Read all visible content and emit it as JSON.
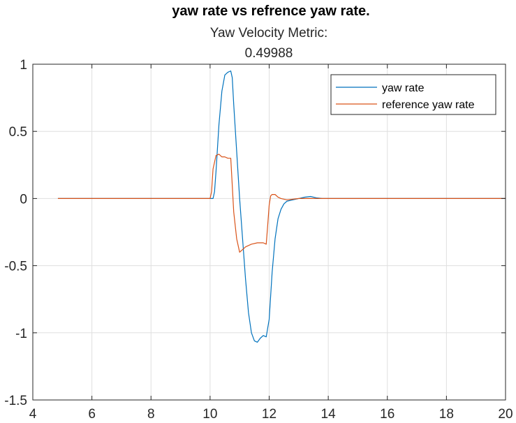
{
  "chart_data": {
    "type": "line",
    "title": "yaw rate vs refrence yaw rate.",
    "subtitle_lines": [
      "Yaw Velocity Metric:",
      "0.49988"
    ],
    "xlabel": "",
    "ylabel": "",
    "xlim": [
      4,
      20
    ],
    "ylim": [
      -1.5,
      1
    ],
    "x_ticks": [
      4,
      6,
      8,
      10,
      12,
      14,
      16,
      18,
      20
    ],
    "x_tick_labels": [
      "4",
      "6",
      "8",
      "10",
      "12",
      "14",
      "16",
      "18",
      "20"
    ],
    "y_ticks": [
      -1.5,
      -1,
      -0.5,
      0,
      0.5,
      1
    ],
    "y_tick_labels": [
      "-1.5",
      "-1",
      "-0.5",
      "0",
      "0.5",
      "1"
    ],
    "grid": true,
    "legend_position": "top-right",
    "series": [
      {
        "name": "yaw rate",
        "color": "#0072BD",
        "x": [
          4.85,
          10.0,
          10.1,
          10.15,
          10.2,
          10.3,
          10.4,
          10.5,
          10.6,
          10.7,
          10.75,
          10.8,
          10.9,
          11.0,
          11.1,
          11.2,
          11.3,
          11.4,
          11.5,
          11.6,
          11.7,
          11.8,
          11.9,
          12.0,
          12.1,
          12.2,
          12.3,
          12.4,
          12.5,
          12.6,
          12.8,
          13.0,
          13.2,
          13.4,
          13.6,
          13.8,
          14.0,
          20.0
        ],
        "y": [
          0,
          0,
          0.0,
          0.05,
          0.2,
          0.55,
          0.8,
          0.92,
          0.94,
          0.95,
          0.9,
          0.7,
          0.35,
          0.0,
          -0.3,
          -0.6,
          -0.85,
          -1.0,
          -1.06,
          -1.07,
          -1.04,
          -1.02,
          -1.03,
          -0.9,
          -0.55,
          -0.3,
          -0.15,
          -0.08,
          -0.04,
          -0.02,
          -0.01,
          0.0,
          0.01,
          0.015,
          0.005,
          0.0,
          0.0,
          0.0
        ]
      },
      {
        "name": "reference yaw rate",
        "color": "#D95319",
        "x": [
          4.85,
          10.0,
          10.05,
          10.1,
          10.2,
          10.3,
          10.4,
          10.5,
          10.6,
          10.7,
          10.75,
          10.8,
          10.9,
          11.0,
          11.1,
          11.2,
          11.4,
          11.6,
          11.8,
          11.9,
          11.95,
          12.0,
          12.05,
          12.1,
          12.2,
          12.3,
          12.4,
          12.6,
          12.8,
          13.0,
          20.0
        ],
        "y": [
          0,
          0,
          0.05,
          0.22,
          0.32,
          0.33,
          0.31,
          0.31,
          0.3,
          0.3,
          0.1,
          -0.1,
          -0.3,
          -0.4,
          -0.38,
          -0.36,
          -0.34,
          -0.33,
          -0.33,
          -0.34,
          -0.2,
          -0.05,
          0.02,
          0.03,
          0.03,
          0.01,
          0.0,
          -0.01,
          -0.005,
          0.0,
          0.0
        ]
      }
    ]
  }
}
